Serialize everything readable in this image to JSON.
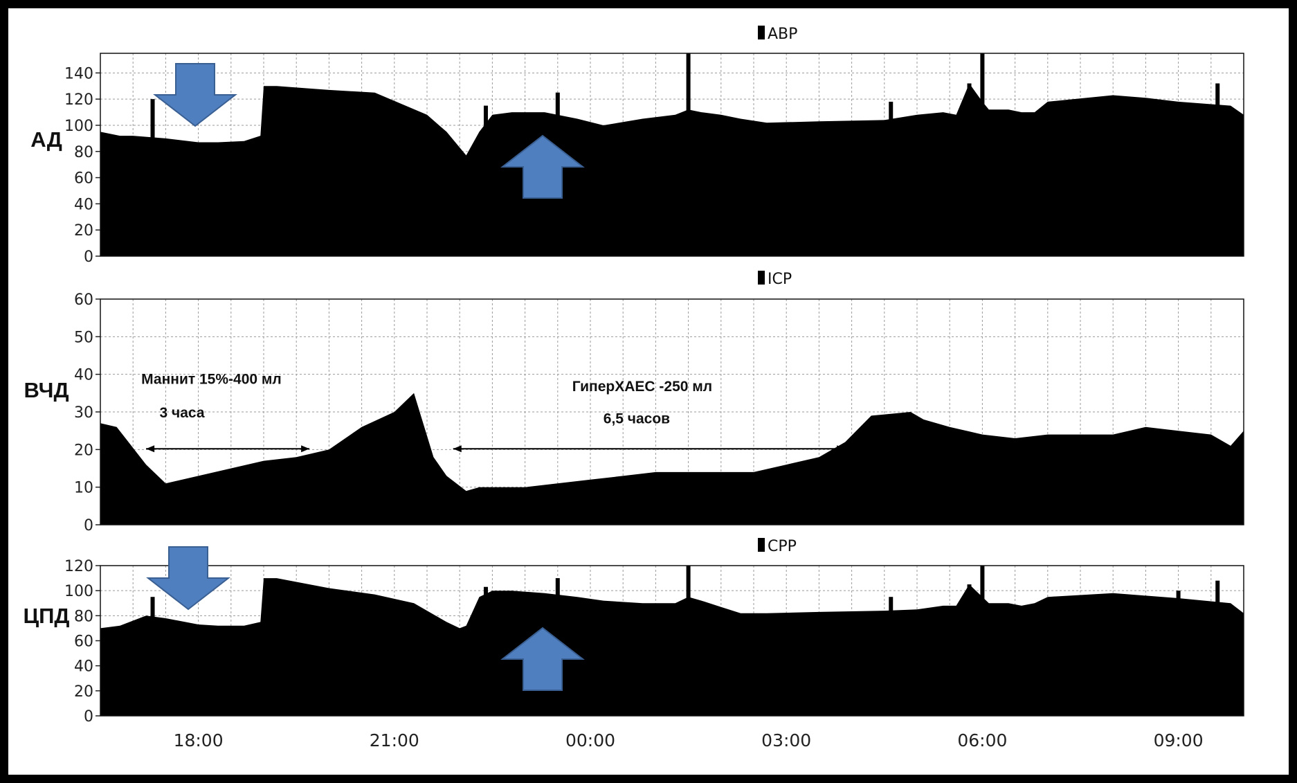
{
  "chart_data": [
    {
      "type": "area",
      "title": "ABP",
      "ylabel": "АД",
      "ylim": [
        0,
        155
      ],
      "yticks": [
        0,
        20,
        40,
        60,
        80,
        100,
        120,
        140
      ],
      "xlabels": [
        "18:00",
        "21:00",
        "00:00",
        "03:00",
        "06:00",
        "09:00"
      ],
      "x": [
        16.5,
        16.8,
        17.0,
        17.5,
        18.0,
        18.3,
        18.7,
        18.95,
        19.0,
        19.2,
        20.0,
        20.7,
        21.5,
        21.8,
        22.05,
        22.1,
        22.3,
        22.5,
        22.8,
        23.3,
        23.8,
        24.2,
        24.8,
        25.3,
        25.5,
        25.7,
        26.0,
        26.3,
        26.7,
        27.5,
        28.5,
        29.0,
        29.4,
        29.6,
        29.8,
        30.0,
        30.1,
        30.4,
        30.6,
        30.8,
        31.0,
        32.0,
        32.5,
        33.0,
        33.8,
        34.0
      ],
      "values": [
        95,
        92,
        92,
        90,
        87,
        87,
        88,
        92,
        130,
        130,
        127,
        125,
        108,
        95,
        80,
        77,
        95,
        108,
        110,
        110,
        105,
        100,
        105,
        108,
        112,
        110,
        108,
        105,
        102,
        103,
        104,
        108,
        110,
        108,
        132,
        118,
        112,
        112,
        110,
        110,
        118,
        123,
        121,
        118,
        115,
        108
      ],
      "spikes": [
        [
          17.3,
          120
        ],
        [
          22.4,
          115
        ],
        [
          23.5,
          125
        ],
        [
          25.5,
          155
        ],
        [
          28.6,
          118
        ],
        [
          29.8,
          132
        ],
        [
          30.0,
          155
        ],
        [
          30.6,
          72
        ],
        [
          31.0,
          90
        ],
        [
          33.0,
          115
        ],
        [
          33.6,
          132
        ],
        [
          33.7,
          70
        ],
        [
          33.85,
          78
        ]
      ]
    },
    {
      "type": "area",
      "title": "ICP",
      "ylabel": "ВЧД",
      "ylim": [
        0,
        60
      ],
      "yticks": [
        0,
        10,
        20,
        30,
        40,
        50,
        60
      ],
      "xlabels": [
        "18:00",
        "21:00",
        "00:00",
        "03:00",
        "06:00",
        "09:00"
      ],
      "x": [
        16.5,
        16.75,
        17.2,
        17.5,
        18.0,
        18.5,
        19.0,
        19.5,
        20.0,
        20.5,
        21.0,
        21.3,
        21.6,
        21.8,
        22.1,
        22.3,
        23.0,
        24.0,
        24.5,
        25.0,
        26.0,
        26.5,
        27.0,
        27.5,
        27.9,
        28.3,
        28.9,
        29.1,
        29.5,
        30.0,
        30.5,
        31.0,
        32.0,
        32.5,
        33.0,
        33.5,
        33.8,
        34.0
      ],
      "values": [
        27,
        26,
        16,
        11,
        13,
        15,
        17,
        18,
        20,
        26,
        30,
        35,
        18,
        13,
        9,
        10,
        10,
        12,
        13,
        14,
        14,
        14,
        16,
        18,
        22,
        29,
        30,
        28,
        26,
        24,
        23,
        24,
        24,
        26,
        25,
        24,
        21,
        25
      ],
      "spikes": [],
      "annotations": [
        {
          "line1": "Маннит 15%-400 мл",
          "line2": "3 часа",
          "x_from": 17.2,
          "x_to": 19.7
        },
        {
          "line1": "ГиперХАЕС -250 мл",
          "line2": "6,5 часов",
          "x_from": 21.9,
          "x_to": 27.9
        }
      ]
    },
    {
      "type": "area",
      "title": "CPP",
      "ylabel": "ЦПД",
      "ylim": [
        0,
        120
      ],
      "yticks": [
        0,
        20,
        40,
        60,
        80,
        100,
        120
      ],
      "xlabels": [
        "18:00",
        "21:00",
        "00:00",
        "03:00",
        "06:00",
        "09:00"
      ],
      "x": [
        16.5,
        16.8,
        17.2,
        17.5,
        18.0,
        18.3,
        18.7,
        18.95,
        19.0,
        19.2,
        20.0,
        20.7,
        21.3,
        21.8,
        22.0,
        22.1,
        22.3,
        22.5,
        22.8,
        23.3,
        23.8,
        24.2,
        24.8,
        25.3,
        25.5,
        25.7,
        26.0,
        26.3,
        26.7,
        27.5,
        28.5,
        29.0,
        29.4,
        29.6,
        29.8,
        30.0,
        30.1,
        30.4,
        30.6,
        30.8,
        31.0,
        32.0,
        32.5,
        33.0,
        33.8,
        34.0
      ],
      "values": [
        70,
        72,
        80,
        78,
        73,
        72,
        72,
        75,
        110,
        110,
        102,
        97,
        90,
        75,
        70,
        72,
        95,
        100,
        100,
        98,
        95,
        92,
        90,
        90,
        95,
        92,
        87,
        82,
        82,
        83,
        84,
        85,
        88,
        88,
        105,
        95,
        90,
        90,
        88,
        90,
        95,
        98,
        96,
        94,
        90,
        82
      ],
      "spikes": [
        [
          17.3,
          95
        ],
        [
          22.4,
          103
        ],
        [
          23.5,
          110
        ],
        [
          25.5,
          120
        ],
        [
          28.6,
          95
        ],
        [
          29.8,
          105
        ],
        [
          30.0,
          120
        ],
        [
          30.6,
          50
        ],
        [
          31.0,
          80
        ],
        [
          33.0,
          100
        ],
        [
          33.6,
          108
        ],
        [
          33.7,
          48
        ],
        [
          33.85,
          55
        ]
      ]
    }
  ]
}
